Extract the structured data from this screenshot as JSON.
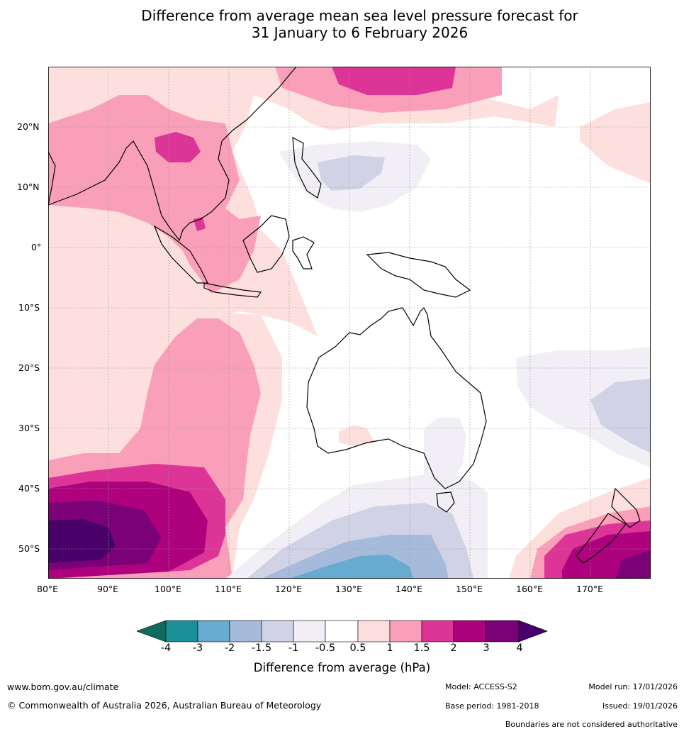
{
  "title": {
    "line1": "Difference from average mean sea level pressure forecast for",
    "line2": "31 January to 6 February 2026"
  },
  "map": {
    "lat_labels": [
      "20°N",
      "10°N",
      "0°",
      "10°S",
      "20°S",
      "30°S",
      "40°S",
      "50°S"
    ],
    "lon_labels": [
      "80°E",
      "90°E",
      "100°E",
      "110°E",
      "120°E",
      "130°E",
      "140°E",
      "150°E",
      "160°E",
      "170°E"
    ],
    "extent": {
      "lon": [
        80,
        180
      ],
      "lat": [
        -55,
        30
      ]
    }
  },
  "legend": {
    "title": "Difference from average (hPa)",
    "ticks": [
      "-4",
      "-3",
      "-2",
      "-1.5",
      "-1",
      "-0.5",
      "0.5",
      "1",
      "1.5",
      "2",
      "3",
      "4"
    ],
    "colors": [
      "#0f6b5e",
      "#1a9199",
      "#68abd0",
      "#a6bbdb",
      "#d1d2e6",
      "#f1eff5",
      "#ffffff",
      "#fde0dd",
      "#f99fb9",
      "#dd3497",
      "#ae017e",
      "#7a0177",
      "#49006a"
    ]
  },
  "footer": {
    "website": "www.bom.gov.au/climate",
    "copyright": "© Commonwealth of Australia 2026, Australian Bureau of Meteorology",
    "model": "Model: ACCESS-S2",
    "base_period": "Base period: 1981-2018",
    "model_run": "Model run: 17/01/2026",
    "issued": "Issued: 19/01/2026",
    "disclaimer": "Boundaries are not considered authoritative"
  }
}
